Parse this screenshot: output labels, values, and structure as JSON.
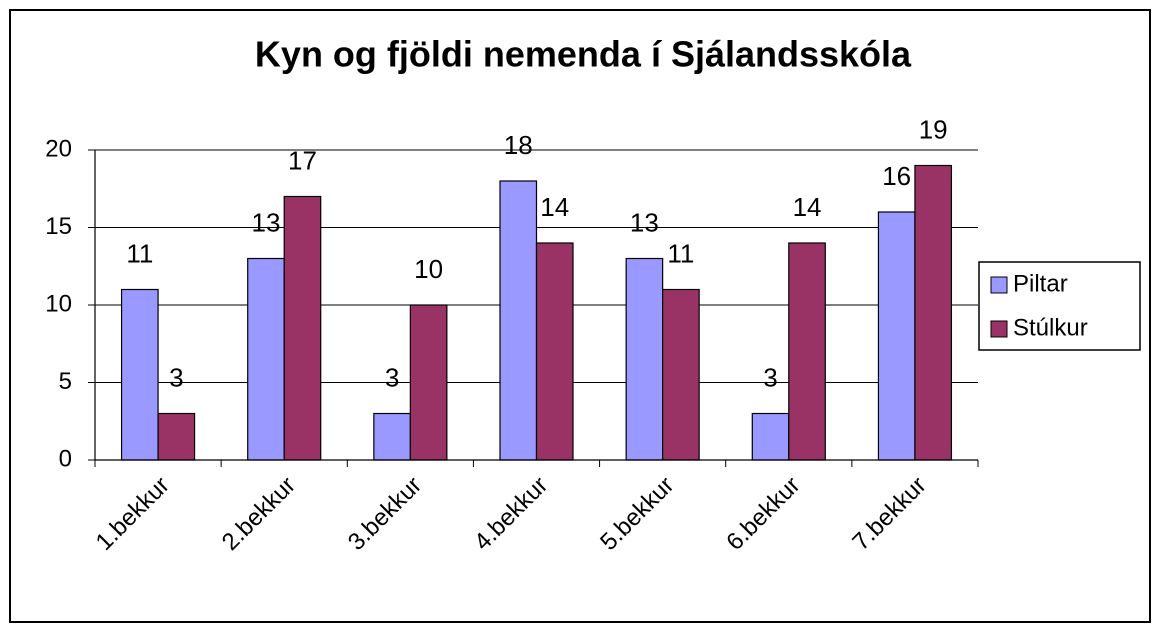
{
  "chart_data": {
    "type": "bar",
    "title": "Kyn og fjöldi nemenda í Sjálandsskóla",
    "categories": [
      "1.bekkur",
      "2.bekkur",
      "3.bekkur",
      "4.bekkur",
      "5.bekkur",
      "6.bekkur",
      "7.bekkur"
    ],
    "series": [
      {
        "name": "Piltar",
        "color": "#9999ff",
        "values": [
          11,
          13,
          3,
          18,
          13,
          3,
          16
        ]
      },
      {
        "name": "Stúlkur",
        "color": "#993366",
        "values": [
          3,
          17,
          10,
          14,
          11,
          14,
          19
        ]
      }
    ],
    "ylim": [
      0,
      20
    ],
    "yticks": [
      0,
      5,
      10,
      15,
      20
    ],
    "grid": true,
    "legend": "right"
  }
}
